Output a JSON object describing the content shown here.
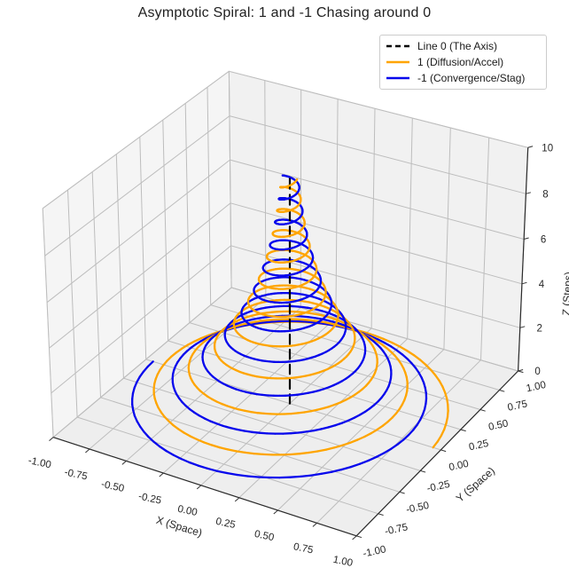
{
  "title": "Asymptotic Spiral: 1 and -1 Chasing around 0",
  "legend": {
    "items": [
      {
        "label": "Line 0 (The Axis)",
        "color": "#000000",
        "style": "dashed"
      },
      {
        "label": "1 (Diffusion/Accel)",
        "color": "#ffa500",
        "style": "solid"
      },
      {
        "label": "-1 (Convergence/Stag)",
        "color": "#0808ec",
        "style": "solid"
      }
    ]
  },
  "chart_data": {
    "type": "line",
    "projection": "3d",
    "view": {
      "elev": 30,
      "azim": -60,
      "proj_type": "persp"
    },
    "title": "Asymptotic Spiral: 1 and -1 Chasing around 0",
    "axes": {
      "x": {
        "label": "X (Space)",
        "range": [
          -1,
          1
        ],
        "ticks": [
          -1,
          -0.75,
          -0.5,
          -0.25,
          0,
          0.25,
          0.5,
          0.75,
          1
        ],
        "tick_labels": [
          "-1.00",
          "-0.75",
          "-0.50",
          "-0.25",
          "0.00",
          "0.25",
          "0.50",
          "0.75",
          "1.00"
        ]
      },
      "y": {
        "label": "Y (Space)",
        "range": [
          -1,
          1
        ],
        "ticks": [
          -1,
          -0.75,
          -0.5,
          -0.25,
          0,
          0.25,
          0.5,
          0.75,
          1
        ],
        "tick_labels": [
          "-1.00",
          "-0.75",
          "-0.50",
          "-0.25",
          "0.00",
          "0.25",
          "0.50",
          "0.75",
          "1.00"
        ]
      },
      "z": {
        "label": "Z (Steps)",
        "range": [
          0,
          10
        ],
        "ticks": [
          0,
          2,
          4,
          6,
          8,
          10
        ],
        "tick_labels": [
          "0",
          "2",
          "4",
          "6",
          "8",
          "10"
        ]
      }
    },
    "series": [
      {
        "name": "Line 0 (The Axis)",
        "color": "#000000",
        "style": "dashed",
        "width": 2.2,
        "kind": "vertical_axis_line",
        "x": 0,
        "y": 0,
        "z_range": [
          0,
          10
        ],
        "dash_on": 0.42,
        "dash_off": 0.26
      },
      {
        "name": "1 (Diffusion/Accel)",
        "color": "#ffa500",
        "style": "solid",
        "width": 2.3,
        "kind": "spiral",
        "r0": 0.95,
        "decay": 0.3,
        "turns": 10,
        "phase_deg": 0,
        "z_range": [
          0,
          10
        ],
        "samples": 900,
        "formula": "x = r0*exp(-decay*t)*cos(2*pi*t + phase); y = r0*exp(-decay*t)*sin(2*pi*t + phase); z = t"
      },
      {
        "name": "-1 (Convergence/Stag)",
        "color": "#0808ec",
        "style": "solid",
        "width": 2.3,
        "kind": "spiral",
        "r0": 0.95,
        "decay": 0.3,
        "turns": 10,
        "phase_deg": 180,
        "z_range": [
          0,
          10
        ],
        "samples": 900,
        "formula": "x = r0*exp(-decay*t)*cos(2*pi*t + phase); y = r0*exp(-decay*t)*sin(2*pi*t + phase); z = t"
      }
    ],
    "colors": {
      "pane_floor": "#eeeeee",
      "pane_left": "#f5f5f5",
      "pane_right": "#f1f1f1",
      "pane_edge": "#dcdcdc",
      "grid": "#bdbdbd",
      "axis_edge": "#2b2b2b",
      "tick": "#333333",
      "tick_label": "#262626",
      "axis_label": "#262626"
    }
  }
}
